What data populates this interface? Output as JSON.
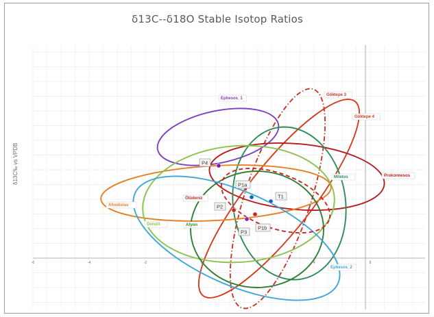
{
  "chart_data": {
    "type": "scatter",
    "title": "δ13C--δ18O Stable Isotop Ratios",
    "ylabel": "δ13C‰ vs VPDB",
    "xlabel": "",
    "grid": true,
    "x_ticks": [
      "-6",
      "-4",
      "-2",
      "0",
      "2",
      "4",
      "6"
    ],
    "regions": [
      {
        "name": "Ephesos_1",
        "color": "#7f3fbf",
        "style": "solid"
      },
      {
        "name": "Göktepe 3",
        "color": "#c0392b",
        "style": "dashdot"
      },
      {
        "name": "Göktepe 4",
        "color": "#d63a1e",
        "style": "solid"
      },
      {
        "name": "Prokonnesos",
        "color": "#b71c1c",
        "style": "solid"
      },
      {
        "name": "Miletos",
        "color": "#2e8b57",
        "style": "solid"
      },
      {
        "name": "Afrodisias",
        "color": "#e67e22",
        "style": "solid"
      },
      {
        "name": "Denizli",
        "color": "#8bc34a",
        "style": "solid"
      },
      {
        "name": "Afyon",
        "color": "#2e7d32",
        "style": "solid"
      },
      {
        "name": "Ephesos_2",
        "color": "#3aa7d8",
        "style": "solid"
      },
      {
        "name": "Ölüdeniz",
        "color": "#c62828",
        "style": "dashed"
      }
    ],
    "samples": [
      {
        "name": "P4"
      },
      {
        "name": "P1a"
      },
      {
        "name": "T1"
      },
      {
        "name": "P2"
      },
      {
        "name": "P3"
      },
      {
        "name": "P1b"
      }
    ]
  }
}
